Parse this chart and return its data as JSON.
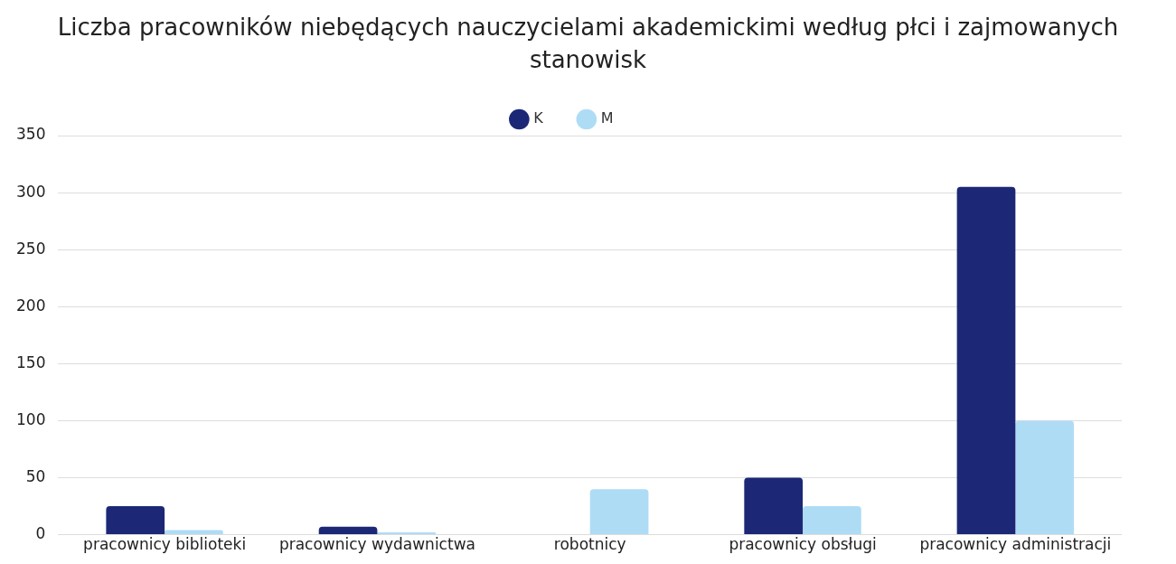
{
  "chart_data": {
    "type": "bar",
    "title": "Liczba pracowników niebędących nauczycielami akademickimi według płci i zajmowanych stanowisk",
    "categories": [
      "pracownicy biblioteki",
      "pracownicy wydawnictwa",
      "robotnicy",
      "pracownicy obsługi",
      "pracownicy administracji"
    ],
    "series": [
      {
        "name": "K",
        "color": "#1c2876",
        "values": [
          25,
          7,
          0,
          50,
          305
        ]
      },
      {
        "name": "M",
        "color": "#aedcf5",
        "values": [
          4,
          2,
          40,
          25,
          100
        ]
      }
    ],
    "ylim": [
      0,
      350
    ],
    "yticks": [
      0,
      50,
      100,
      150,
      200,
      250,
      300,
      350
    ],
    "grid": "y",
    "legend": "top"
  }
}
